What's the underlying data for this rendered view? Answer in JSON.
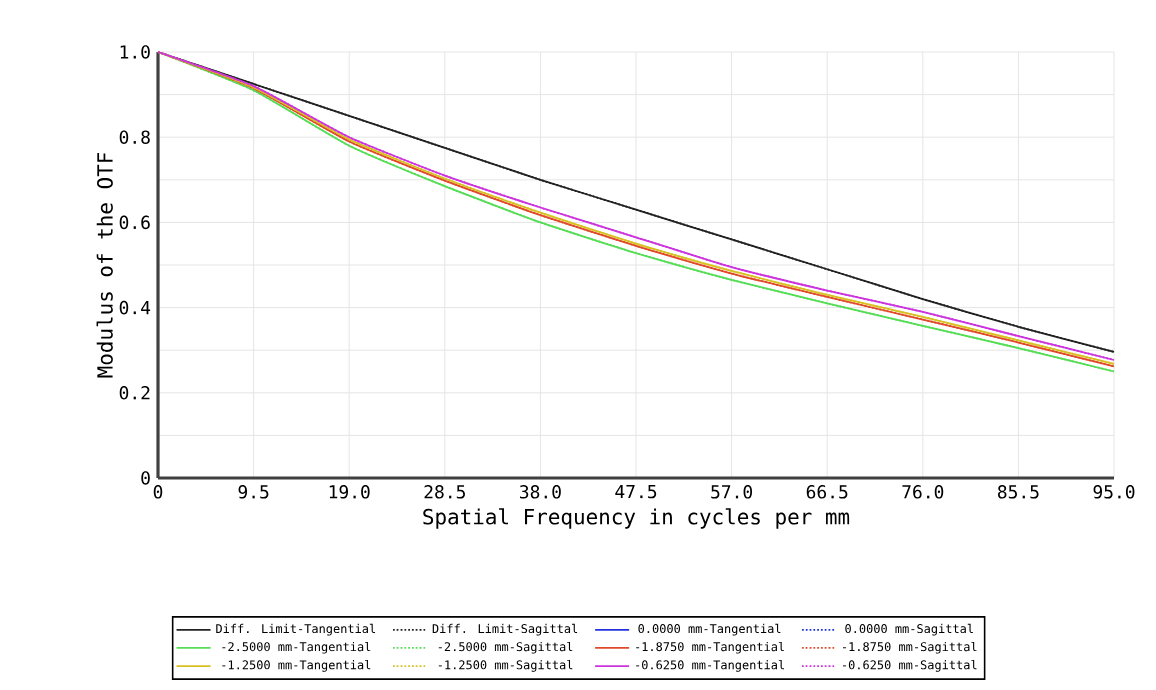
{
  "chart_data": {
    "type": "line",
    "xlabel": "Spatial Frequency in cycles per mm",
    "ylabel": "Modulus of the OTF",
    "x": [
      0,
      9.5,
      19,
      28.5,
      38,
      47.5,
      57,
      66.5,
      76,
      85.5,
      95
    ],
    "xlim": [
      0,
      95
    ],
    "ylim": [
      0,
      1
    ],
    "xticks": [
      0,
      9.5,
      {
        "value": 19,
        "label": "19.0"
      },
      28.5,
      {
        "value": 38,
        "label": "38.0"
      },
      47.5,
      {
        "value": 57,
        "label": "57.0"
      },
      66.5,
      {
        "value": 76,
        "label": "76.0"
      },
      85.5,
      {
        "value": 95,
        "label": "95.0"
      }
    ],
    "yticks": [
      0,
      0.2,
      0.4,
      0.6,
      0.8,
      {
        "value": 1,
        "label": "1.0"
      }
    ],
    "grid": true,
    "legend": "bottom",
    "marker": "none",
    "series": [
      {
        "name": "Diff. Limit-Tangential",
        "color": "#222222",
        "line_style": "solid",
        "values": [
          1,
          0.925,
          0.85,
          0.775,
          0.7,
          0.63,
          0.56,
          0.49,
          0.42,
          0.355,
          0.296
        ]
      },
      {
        "name": "Diff. Limit-Sagittal",
        "color": "#222222",
        "line_style": "dotted",
        "values": [
          1,
          0.925,
          0.85,
          0.775,
          0.7,
          0.63,
          0.56,
          0.49,
          0.42,
          0.355,
          0.296
        ]
      },
      {
        "name": "0.0000 mm-Tangential",
        "color": "#2233dd",
        "line_style": "solid",
        "values": [
          null,
          null,
          null,
          null,
          null,
          null,
          null,
          null,
          null,
          null,
          null
        ]
      },
      {
        "name": "0.0000 mm-Sagittal",
        "color": "#2233dd",
        "line_style": "dotted",
        "values": [
          null,
          null,
          null,
          null,
          null,
          null,
          null,
          null,
          null,
          null,
          null
        ]
      },
      {
        "name": "-2.5000 mm-Tangential",
        "color": "#55dd55",
        "line_style": "solid",
        "values": [
          1,
          0.91,
          0.78,
          0.685,
          0.6,
          0.528,
          0.465,
          0.41,
          0.357,
          0.305,
          0.25
        ]
      },
      {
        "name": "-2.5000 mm-Sagittal",
        "color": "#55dd55",
        "line_style": "dotted",
        "values": [
          1,
          0.91,
          0.78,
          0.685,
          0.6,
          0.528,
          0.465,
          0.41,
          0.357,
          0.305,
          0.25
        ]
      },
      {
        "name": "-1.8750 mm-Tangential",
        "color": "#e04a2a",
        "line_style": "solid",
        "values": [
          1,
          0.915,
          0.79,
          0.698,
          0.617,
          0.545,
          0.48,
          0.425,
          0.372,
          0.318,
          0.262
        ]
      },
      {
        "name": "-1.8750 mm-Sagittal",
        "color": "#e04a2a",
        "line_style": "dotted",
        "values": [
          1,
          0.915,
          0.79,
          0.698,
          0.617,
          0.545,
          0.48,
          0.425,
          0.372,
          0.318,
          0.262
        ]
      },
      {
        "name": "-1.2500 mm-Tangential",
        "color": "#d8c020",
        "line_style": "solid",
        "values": [
          1,
          0.917,
          0.795,
          0.703,
          0.623,
          0.55,
          0.486,
          0.43,
          0.378,
          0.323,
          0.268
        ]
      },
      {
        "name": "-1.2500 mm-Sagittal",
        "color": "#d8c020",
        "line_style": "dotted",
        "values": [
          1,
          0.917,
          0.795,
          0.703,
          0.623,
          0.55,
          0.486,
          0.43,
          0.378,
          0.323,
          0.268
        ]
      },
      {
        "name": "-0.6250 mm-Tangential",
        "color": "#cc33dd",
        "line_style": "solid",
        "values": [
          1,
          0.92,
          0.8,
          0.71,
          0.635,
          0.565,
          0.495,
          0.44,
          0.39,
          0.333,
          0.277
        ]
      },
      {
        "name": "-0.6250 mm-Sagittal",
        "color": "#cc33dd",
        "line_style": "dotted",
        "values": [
          1,
          0.92,
          0.8,
          0.71,
          0.635,
          0.565,
          0.495,
          0.44,
          0.39,
          0.333,
          0.277
        ]
      }
    ]
  }
}
